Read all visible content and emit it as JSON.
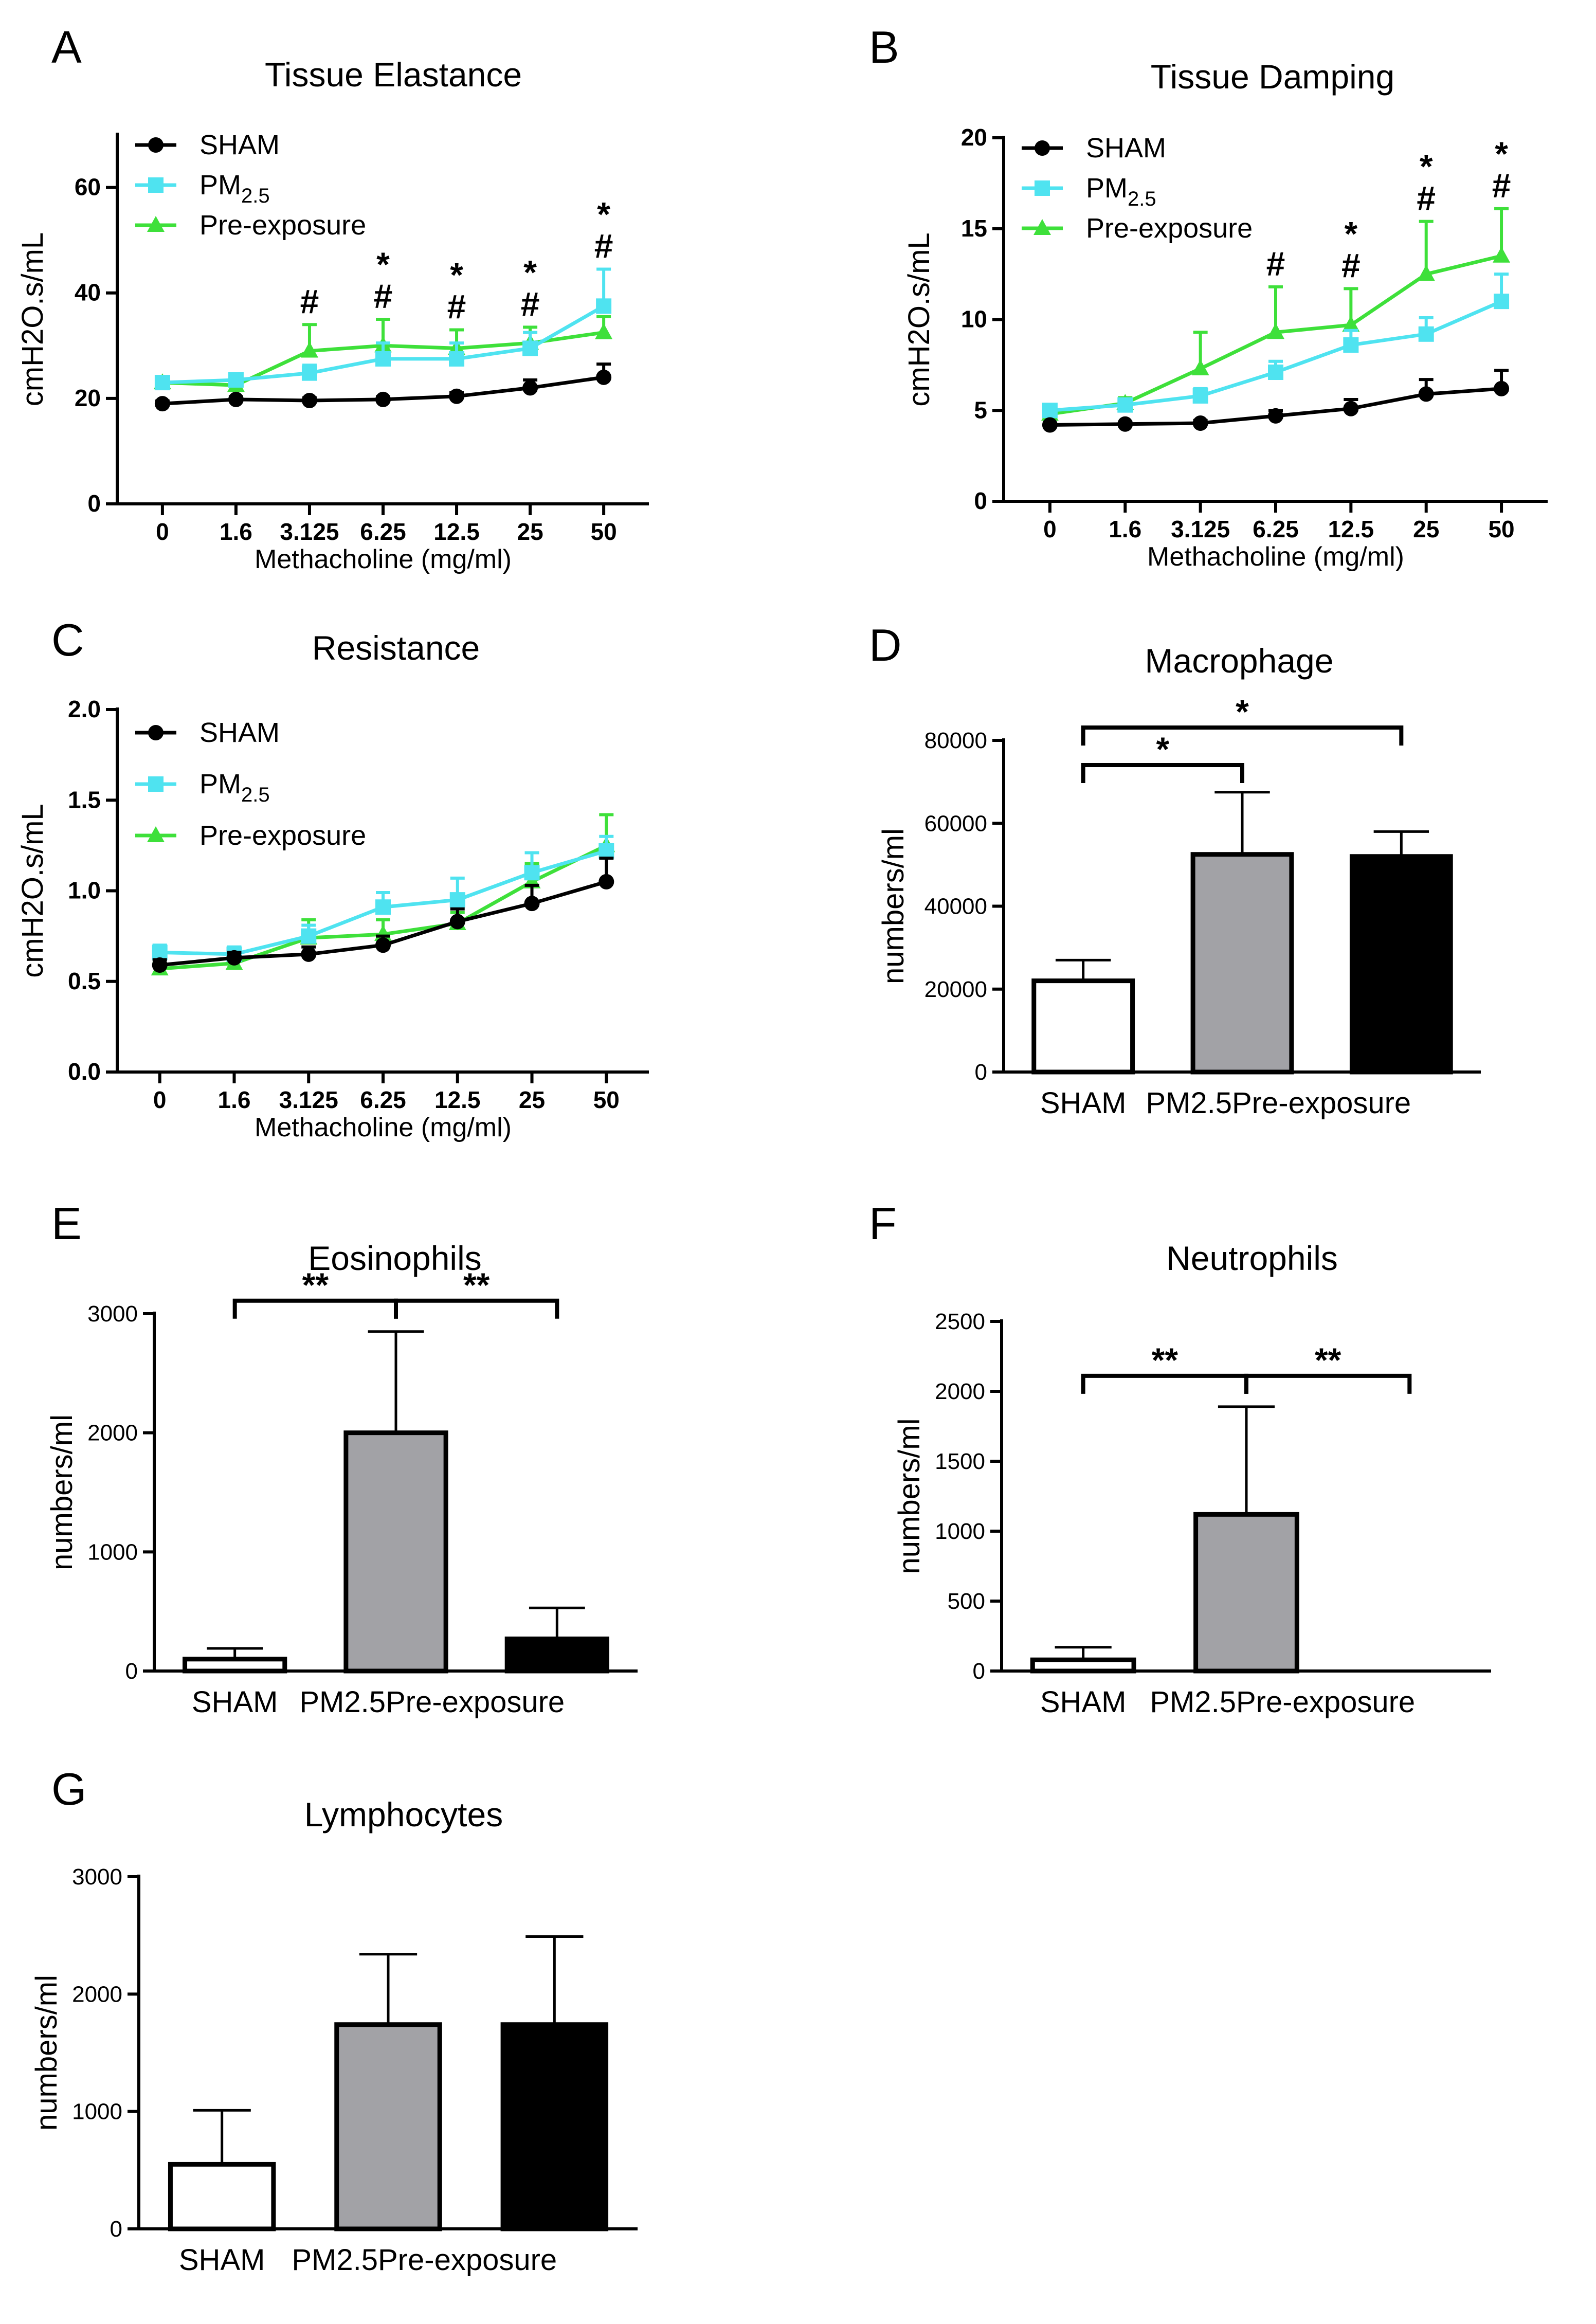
{
  "colors": {
    "sham": "#000000",
    "pm25": "#4fe3f0",
    "pre": "#3ee03a",
    "bar_sham": "#ffffff",
    "bar_pm25": "#a2a2a6",
    "bar_pre": "#000000"
  },
  "chart_data": [
    {
      "id": "A",
      "panel_letter": "A",
      "type": "line",
      "title": "Tissue Elastance",
      "xlabel": "Methacholine (mg/ml)",
      "ylabel": "cmH2O.s/mL",
      "categories": [
        "0",
        "1.6",
        "3.125",
        "6.25",
        "12.5",
        "25",
        "50"
      ],
      "ylim": [
        0,
        70
      ],
      "yticks": [
        0,
        20,
        40,
        60
      ],
      "legend_position": "top-left",
      "series": [
        {
          "name": "SHAM",
          "color_key": "sham",
          "marker": "circle",
          "values": [
            19,
            19.8,
            19.6,
            19.8,
            20.4,
            22,
            24
          ],
          "errors": [
            0.5,
            0.5,
            0.5,
            0.5,
            0.7,
            1.5,
            2.5
          ]
        },
        {
          "name": "PM",
          "name_sub": "2.5",
          "color_key": "pm25",
          "marker": "square",
          "values": [
            23,
            23.5,
            24.8,
            27.5,
            27.5,
            29.5,
            37.5
          ],
          "errors": [
            0.8,
            1.0,
            1.5,
            3.0,
            3.0,
            3.0,
            7.0
          ]
        },
        {
          "name": "Pre-exposure",
          "color_key": "pre",
          "marker": "triangle",
          "values": [
            23,
            22.5,
            29,
            30,
            29.5,
            30.5,
            32.5
          ],
          "errors": [
            0.5,
            1.0,
            5.0,
            5.0,
            3.5,
            3.0,
            3.0
          ]
        }
      ],
      "annotations": [
        {
          "category": "3.125",
          "marks": [
            "#"
          ]
        },
        {
          "category": "6.25",
          "marks": [
            "*",
            "#"
          ]
        },
        {
          "category": "12.5",
          "marks": [
            "*",
            "#"
          ]
        },
        {
          "category": "25",
          "marks": [
            "*",
            "#"
          ]
        },
        {
          "category": "50",
          "marks": [
            "*",
            "#"
          ]
        }
      ]
    },
    {
      "id": "B",
      "panel_letter": "B",
      "type": "line",
      "title": "Tissue Damping",
      "xlabel": "Methacholine (mg/ml)",
      "ylabel": "cmH2O.s/mL",
      "categories": [
        "0",
        "1.6",
        "3.125",
        "6.25",
        "12.5",
        "25",
        "50"
      ],
      "ylim": [
        0,
        20
      ],
      "yticks": [
        0,
        5,
        10,
        15,
        20
      ],
      "legend_position": "top-left",
      "series": [
        {
          "name": "SHAM",
          "color_key": "sham",
          "marker": "circle",
          "values": [
            4.2,
            4.25,
            4.3,
            4.7,
            5.1,
            5.9,
            6.2
          ],
          "errors": [
            0.1,
            0.1,
            0.15,
            0.3,
            0.5,
            0.8,
            1.0
          ]
        },
        {
          "name": "PM",
          "name_sub": "2.5",
          "color_key": "pm25",
          "marker": "square",
          "values": [
            5.0,
            5.3,
            5.8,
            7.1,
            8.6,
            9.2,
            11.0
          ],
          "errors": [
            0.2,
            0.3,
            0.4,
            0.6,
            0.8,
            0.9,
            1.5
          ]
        },
        {
          "name": "Pre-exposure",
          "color_key": "pre",
          "marker": "triangle",
          "values": [
            4.8,
            5.4,
            7.3,
            9.3,
            9.7,
            12.5,
            13.5
          ],
          "errors": [
            0.2,
            0.3,
            2.0,
            2.5,
            2.0,
            2.9,
            2.6
          ]
        }
      ],
      "annotations": [
        {
          "category": "6.25",
          "marks": [
            "#"
          ]
        },
        {
          "category": "12.5",
          "marks": [
            "*",
            "#"
          ]
        },
        {
          "category": "25",
          "marks": [
            "*",
            "#"
          ]
        },
        {
          "category": "50",
          "marks": [
            "*",
            "#"
          ]
        }
      ]
    },
    {
      "id": "C",
      "panel_letter": "C",
      "type": "line",
      "title": "Resistance",
      "xlabel": "Methacholine (mg/ml)",
      "ylabel": "cmH2O.s/mL",
      "categories": [
        "0",
        "1.6",
        "3.125",
        "6.25",
        "12.5",
        "25",
        "50"
      ],
      "ylim": [
        0,
        2.0
      ],
      "yticks": [
        "0.0",
        "0.5",
        "1.0",
        "1.5",
        "2.0"
      ],
      "legend_position": "top-left",
      "series": [
        {
          "name": "SHAM",
          "color_key": "sham",
          "marker": "circle",
          "values": [
            0.59,
            0.63,
            0.65,
            0.7,
            0.83,
            0.93,
            1.05
          ],
          "errors": [
            0.03,
            0.03,
            0.04,
            0.05,
            0.07,
            0.1,
            0.13
          ]
        },
        {
          "name": "PM",
          "name_sub": "2.5",
          "color_key": "pm25",
          "marker": "square",
          "values": [
            0.66,
            0.65,
            0.75,
            0.91,
            0.95,
            1.1,
            1.22
          ],
          "errors": [
            0.04,
            0.04,
            0.06,
            0.08,
            0.12,
            0.11,
            0.08
          ]
        },
        {
          "name": "Pre-exposure",
          "color_key": "pre",
          "marker": "triangle",
          "values": [
            0.57,
            0.6,
            0.74,
            0.76,
            0.82,
            1.05,
            1.25
          ],
          "errors": [
            0.03,
            0.05,
            0.1,
            0.08,
            0.06,
            0.1,
            0.17
          ]
        }
      ],
      "annotations": []
    },
    {
      "id": "D",
      "panel_letter": "D",
      "type": "bar",
      "title": "Macrophage",
      "ylabel": "numbers/ml",
      "categories": [
        "SHAM",
        "PM2.5",
        "Pre-exposure"
      ],
      "ylim": [
        0,
        80000
      ],
      "yticks": [
        0,
        20000,
        40000,
        60000,
        80000
      ],
      "values": [
        22000,
        52500,
        52000
      ],
      "errors": [
        5000,
        15000,
        6000
      ],
      "fill_keys": [
        "bar_sham",
        "bar_pm25",
        "bar_pre"
      ],
      "brackets": [
        {
          "from": 0,
          "to": 1,
          "label": "*"
        },
        {
          "from": 0,
          "to": 2,
          "label": "*"
        }
      ]
    },
    {
      "id": "E",
      "panel_letter": "E",
      "type": "bar",
      "title": "Eosinophils",
      "ylabel": "numbers/ml",
      "categories": [
        "SHAM",
        "PM2.5",
        "Pre-exposure"
      ],
      "ylim": [
        0,
        3000
      ],
      "yticks": [
        0,
        1000,
        2000,
        3000
      ],
      "values": [
        100,
        2000,
        270
      ],
      "errors": [
        90,
        850,
        260
      ],
      "fill_keys": [
        "bar_sham",
        "bar_pm25",
        "bar_pre"
      ],
      "brackets": [
        {
          "from": 0,
          "to": 1,
          "label": "**"
        },
        {
          "from": 1,
          "to": 2,
          "label": "**"
        }
      ]
    },
    {
      "id": "F",
      "panel_letter": "F",
      "type": "bar",
      "title": "Neutrophils",
      "ylabel": "numbers/ml",
      "categories": [
        "SHAM",
        "PM2.5",
        "Pre-exposure"
      ],
      "ylim": [
        0,
        2500
      ],
      "yticks": [
        0,
        500,
        1000,
        1500,
        2000,
        2500
      ],
      "values": [
        80,
        1120,
        0
      ],
      "errors": [
        90,
        770,
        0
      ],
      "fill_keys": [
        "bar_sham",
        "bar_pm25",
        "bar_pre"
      ],
      "brackets": [
        {
          "from": 0,
          "to": 1,
          "label": "**"
        },
        {
          "from": 1,
          "to": 2,
          "label": "**"
        }
      ]
    },
    {
      "id": "G",
      "panel_letter": "G",
      "type": "bar",
      "title": "Lymphocytes",
      "ylabel": "numbers/ml",
      "categories": [
        "SHAM",
        "PM2.5",
        "Pre-exposure"
      ],
      "ylim": [
        0,
        3000
      ],
      "yticks": [
        0,
        1000,
        2000,
        3000
      ],
      "values": [
        550,
        1740,
        1740
      ],
      "errors": [
        460,
        600,
        750
      ],
      "fill_keys": [
        "bar_sham",
        "bar_pm25",
        "bar_pre"
      ],
      "brackets": []
    }
  ]
}
